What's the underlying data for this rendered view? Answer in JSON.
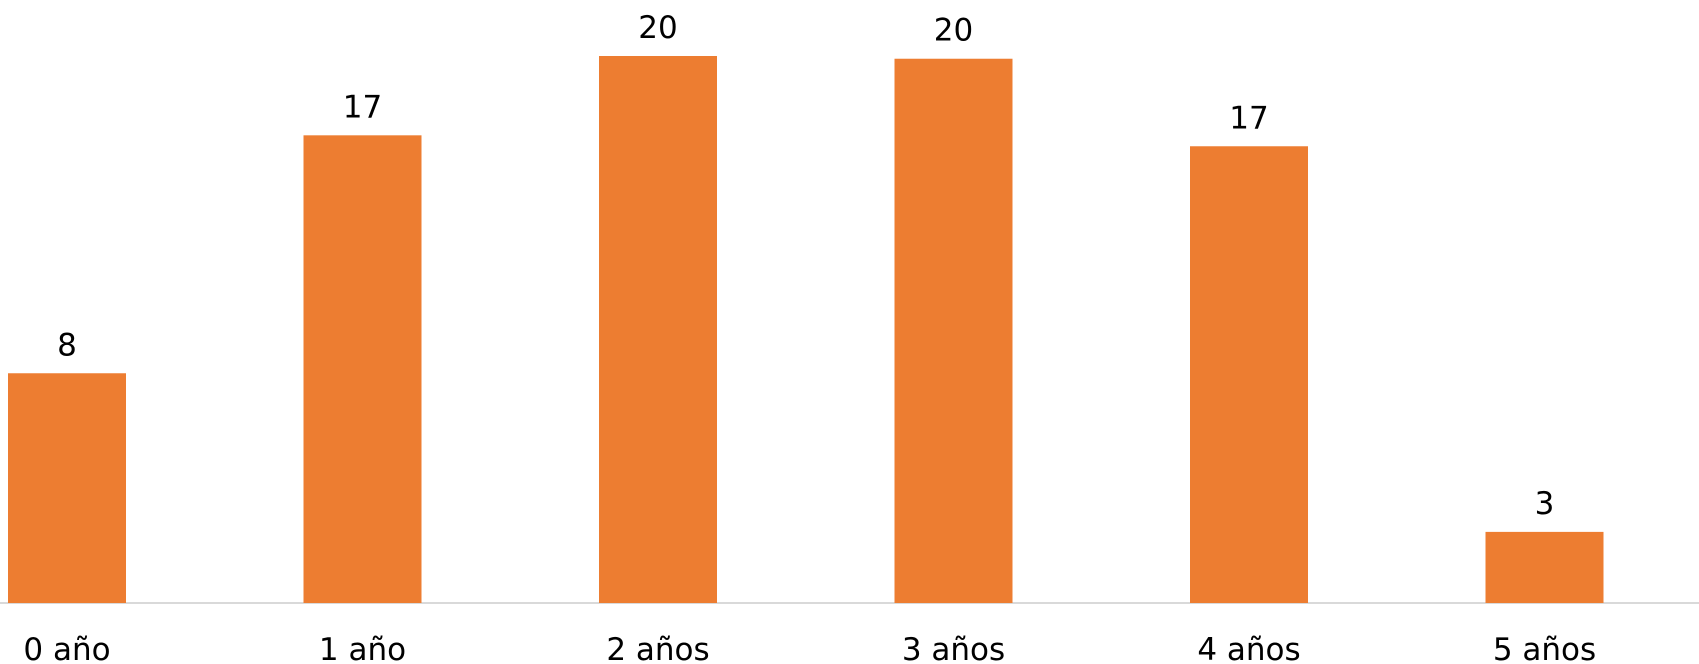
{
  "chart_data": {
    "type": "bar",
    "categories": [
      "0 año",
      "1 año",
      "2 años",
      "3 años",
      "4 años",
      "5 años"
    ],
    "values": [
      8.4,
      17.1,
      20.0,
      19.9,
      16.7,
      2.6
    ],
    "value_labels": [
      "8",
      "17",
      "20",
      "20",
      "17",
      "3"
    ],
    "color": "#ed7d31"
  }
}
